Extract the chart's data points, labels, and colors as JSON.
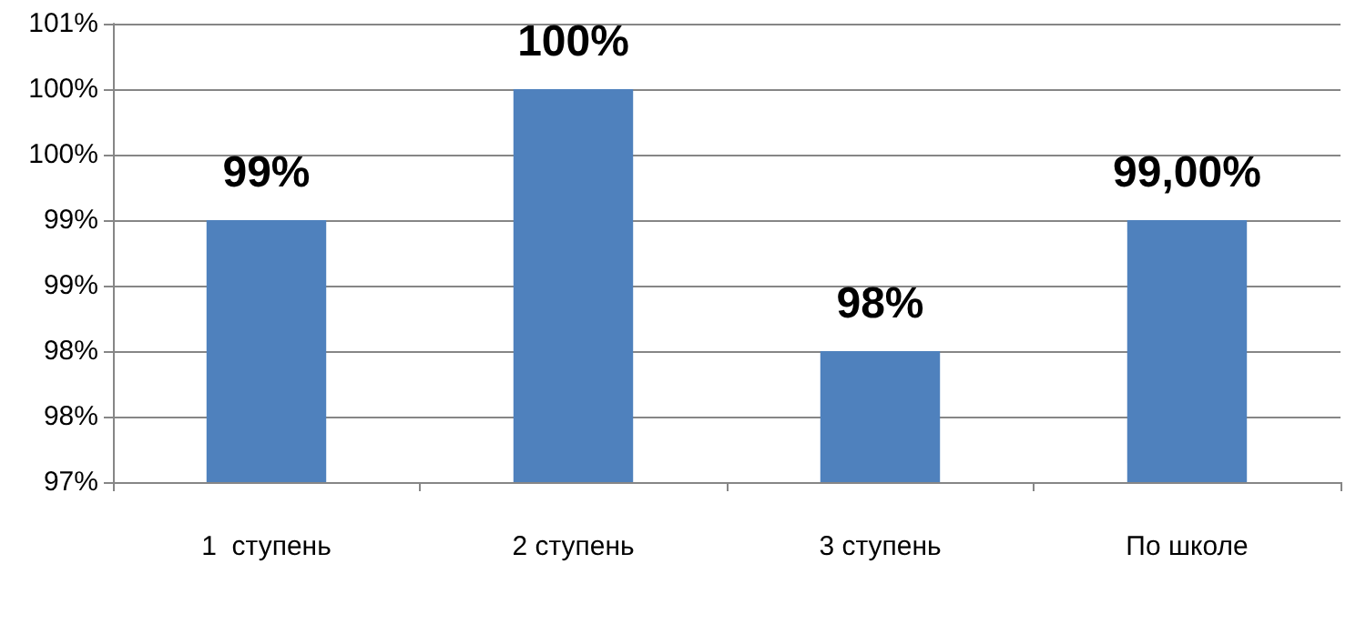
{
  "chart_data": {
    "type": "bar",
    "categories": [
      "1  ступень",
      "2 ступень",
      "3 ступень",
      "По школе"
    ],
    "values": [
      99,
      100,
      98,
      99
    ],
    "color": "#4f81bd",
    "value_labels": [
      "99%",
      "100%",
      "98%",
      "99,00%"
    ],
    "ylim": [
      97,
      100.5
    ],
    "yticks": [
      {
        "value": 97,
        "label": "97%"
      },
      {
        "value": 97.5,
        "label": "98%"
      },
      {
        "value": 98,
        "label": "98%"
      },
      {
        "value": 98.5,
        "label": "99%"
      },
      {
        "value": 99,
        "label": "99%"
      },
      {
        "value": 99.5,
        "label": "100%"
      },
      {
        "value": 100,
        "label": "100%"
      },
      {
        "value": 100.5,
        "label": "101%"
      }
    ],
    "grid": "y"
  }
}
